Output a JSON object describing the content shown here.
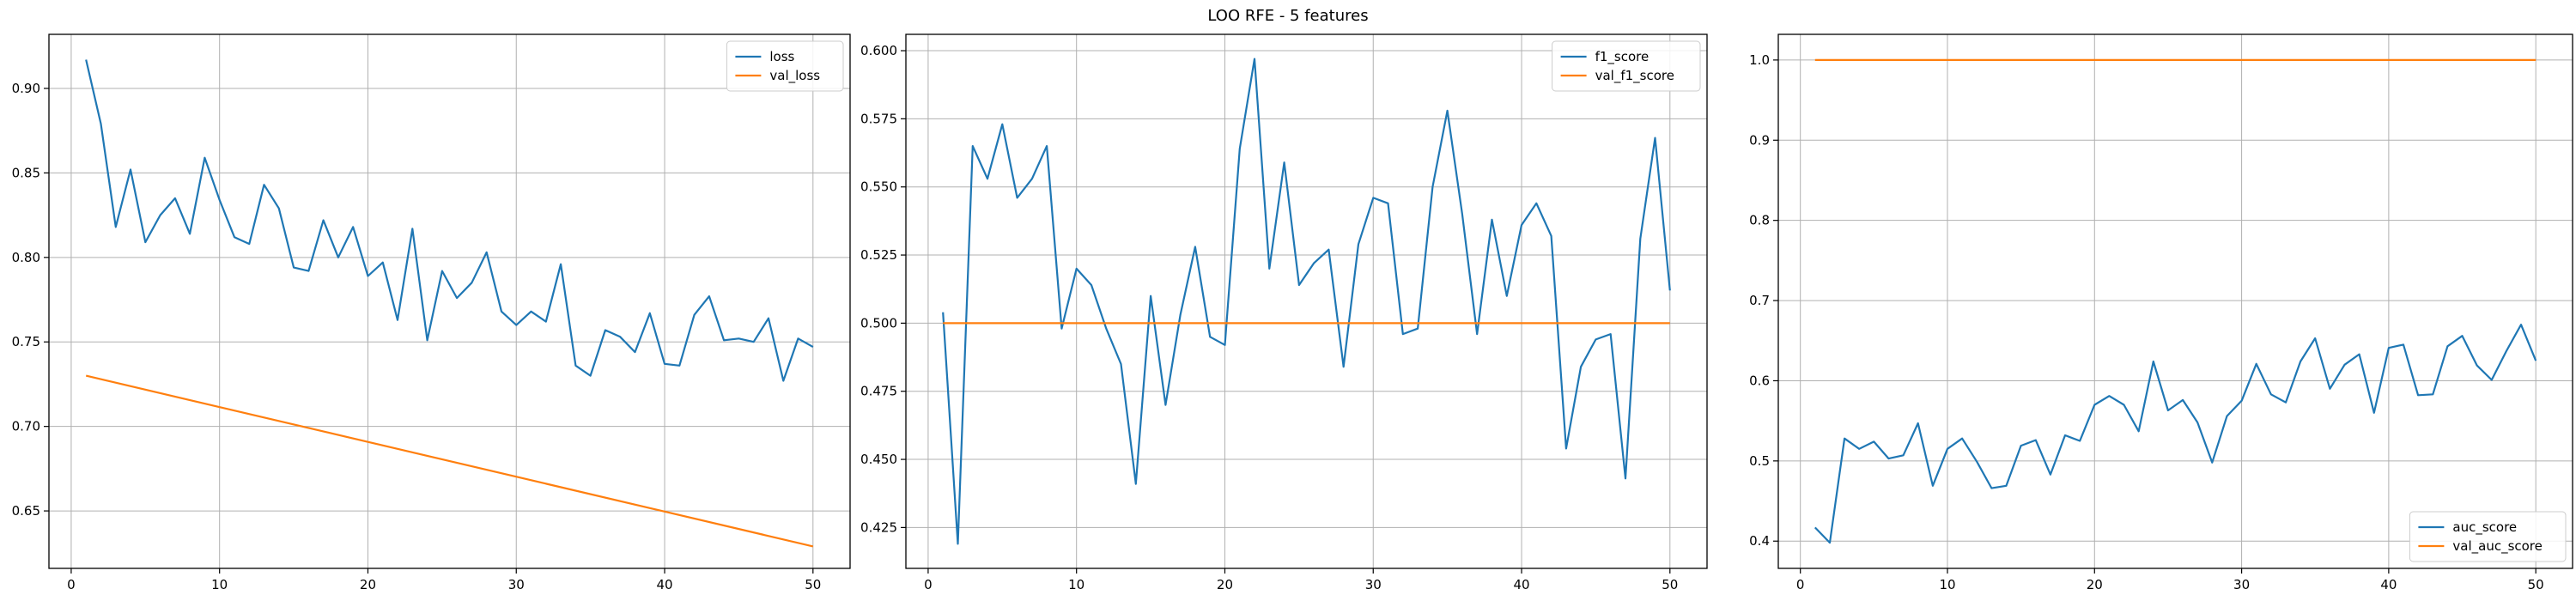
{
  "figure": {
    "suptitle": "LOO RFE - 5 features"
  },
  "colors": {
    "series1": "#1f77b4",
    "series2": "#ff7f0e",
    "grid": "#b0b0b0",
    "axes": "#000000"
  },
  "chart_data": [
    {
      "type": "line",
      "legend_placement": "top-right",
      "grid": true,
      "xlim": [
        -1.5,
        52.5
      ],
      "ylim": [
        0.616,
        0.932
      ],
      "xticks": [
        0,
        10,
        20,
        30,
        40,
        50
      ],
      "yticks": [
        0.65,
        0.7,
        0.75,
        0.8,
        0.85,
        0.9
      ],
      "ytick_labels": [
        "0.65",
        "0.70",
        "0.75",
        "0.80",
        "0.85",
        "0.90"
      ],
      "series": [
        {
          "name": "loss",
          "x": [
            1,
            2,
            3,
            4,
            5,
            6,
            7,
            8,
            9,
            10,
            11,
            12,
            13,
            14,
            15,
            16,
            17,
            18,
            19,
            20,
            21,
            22,
            23,
            24,
            25,
            26,
            27,
            28,
            29,
            30,
            31,
            32,
            33,
            34,
            35,
            36,
            37,
            38,
            39,
            40,
            41,
            42,
            43,
            44,
            45,
            46,
            47,
            48,
            49,
            50
          ],
          "y": [
            0.917,
            0.879,
            0.818,
            0.852,
            0.809,
            0.825,
            0.835,
            0.814,
            0.859,
            0.834,
            0.812,
            0.808,
            0.843,
            0.829,
            0.794,
            0.792,
            0.822,
            0.8,
            0.818,
            0.789,
            0.797,
            0.763,
            0.817,
            0.751,
            0.792,
            0.776,
            0.785,
            0.803,
            0.768,
            0.76,
            0.768,
            0.762,
            0.796,
            0.736,
            0.73,
            0.757,
            0.753,
            0.744,
            0.767,
            0.737,
            0.736,
            0.766,
            0.777,
            0.751,
            0.752,
            0.75,
            0.764,
            0.727,
            0.752,
            0.747
          ]
        },
        {
          "name": "val_loss",
          "x": [
            1,
            50
          ],
          "y": [
            0.73,
            0.629
          ]
        }
      ]
    },
    {
      "type": "line",
      "legend_placement": "top-right",
      "grid": true,
      "xlim": [
        -1.5,
        52.5
      ],
      "ylim": [
        0.41,
        0.606
      ],
      "xticks": [
        0,
        10,
        20,
        30,
        40,
        50
      ],
      "yticks": [
        0.425,
        0.45,
        0.475,
        0.5,
        0.525,
        0.55,
        0.575,
        0.6
      ],
      "ytick_labels": [
        "0.425",
        "0.450",
        "0.475",
        "0.500",
        "0.525",
        "0.550",
        "0.575",
        "0.600"
      ],
      "series": [
        {
          "name": "f1_score",
          "x": [
            1,
            2,
            3,
            4,
            5,
            6,
            7,
            8,
            9,
            10,
            11,
            12,
            13,
            14,
            15,
            16,
            17,
            18,
            19,
            20,
            21,
            22,
            23,
            24,
            25,
            26,
            27,
            28,
            29,
            30,
            31,
            32,
            33,
            34,
            35,
            36,
            37,
            38,
            39,
            40,
            41,
            42,
            43,
            44,
            45,
            46,
            47,
            48,
            49,
            50
          ],
          "y": [
            0.504,
            0.419,
            0.565,
            0.553,
            0.573,
            0.546,
            0.553,
            0.565,
            0.498,
            0.52,
            0.514,
            0.498,
            0.485,
            0.441,
            0.51,
            0.47,
            0.503,
            0.528,
            0.495,
            0.492,
            0.564,
            0.597,
            0.52,
            0.559,
            0.514,
            0.522,
            0.527,
            0.484,
            0.529,
            0.546,
            0.544,
            0.496,
            0.498,
            0.55,
            0.578,
            0.54,
            0.496,
            0.538,
            0.51,
            0.536,
            0.544,
            0.532,
            0.454,
            0.484,
            0.494,
            0.496,
            0.443,
            0.531,
            0.568,
            0.512
          ]
        },
        {
          "name": "val_f1_score",
          "x": [
            1,
            50
          ],
          "y": [
            0.5,
            0.5
          ]
        }
      ]
    },
    {
      "type": "line",
      "legend_placement": "bottom-right",
      "grid": true,
      "xlim": [
        -1.5,
        52.5
      ],
      "ylim": [
        0.366,
        1.032
      ],
      "xticks": [
        0,
        10,
        20,
        30,
        40,
        50
      ],
      "yticks": [
        0.4,
        0.5,
        0.6,
        0.7,
        0.8,
        0.9,
        1.0
      ],
      "ytick_labels": [
        "0.4",
        "0.5",
        "0.6",
        "0.7",
        "0.8",
        "0.9",
        "1.0"
      ],
      "series": [
        {
          "name": "auc_score",
          "x": [
            1,
            2,
            3,
            4,
            5,
            6,
            7,
            8,
            9,
            10,
            11,
            12,
            13,
            14,
            15,
            16,
            17,
            18,
            19,
            20,
            21,
            22,
            23,
            24,
            25,
            26,
            27,
            28,
            29,
            30,
            31,
            32,
            33,
            34,
            35,
            36,
            37,
            38,
            39,
            40,
            41,
            42,
            43,
            44,
            45,
            46,
            47,
            48,
            49,
            50
          ],
          "y": [
            0.417,
            0.398,
            0.528,
            0.515,
            0.524,
            0.503,
            0.507,
            0.547,
            0.469,
            0.515,
            0.528,
            0.499,
            0.466,
            0.469,
            0.519,
            0.526,
            0.483,
            0.532,
            0.525,
            0.57,
            0.581,
            0.57,
            0.537,
            0.624,
            0.563,
            0.576,
            0.548,
            0.498,
            0.556,
            0.575,
            0.621,
            0.583,
            0.573,
            0.624,
            0.653,
            0.59,
            0.62,
            0.633,
            0.56,
            0.641,
            0.645,
            0.582,
            0.583,
            0.643,
            0.656,
            0.619,
            0.601,
            0.637,
            0.67,
            0.625
          ]
        },
        {
          "name": "val_auc_score",
          "x": [
            1,
            50
          ],
          "y": [
            1.0,
            1.0
          ]
        }
      ]
    }
  ]
}
